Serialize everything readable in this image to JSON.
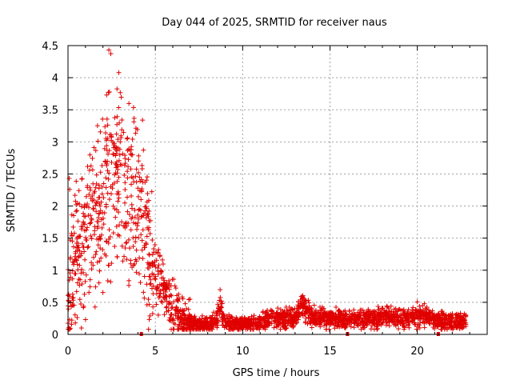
{
  "chart_data": {
    "type": "scatter",
    "title": "Day 044 of 2025, SRMTID for receiver naus",
    "xlabel": "GPS time / hours",
    "ylabel": "SRMTID / TECUs",
    "xlim": [
      0,
      24
    ],
    "ylim": [
      0,
      4.5
    ],
    "x_ticks": [
      0,
      5,
      10,
      15,
      20
    ],
    "y_ticks": [
      0,
      0.5,
      1,
      1.5,
      2,
      2.5,
      3,
      3.5,
      4,
      4.5
    ],
    "x_tick_labels": [
      "0",
      "5",
      "10",
      "15",
      "20"
    ],
    "y_tick_labels": [
      "0",
      "0.5",
      "1",
      "1.5",
      "2",
      "2.5",
      "3",
      "3.5",
      "4",
      "4.5"
    ],
    "grid": true,
    "marker": "+",
    "color": "#e00000",
    "gap_markers_x": [
      4.2,
      16.0,
      21.2
    ],
    "series": [
      {
        "name": "SRMTID",
        "trend_x": [
          0.0,
          0.25,
          0.5,
          0.75,
          1.0,
          1.25,
          1.5,
          1.75,
          2.0,
          2.25,
          2.5,
          2.75,
          3.0,
          3.25,
          3.5,
          3.75,
          4.0,
          4.25,
          4.5,
          4.75,
          5.0,
          5.25,
          5.5,
          5.75,
          6.0,
          6.25,
          6.5,
          6.75,
          7.0,
          7.5,
          8.0,
          8.5,
          8.7,
          9.0,
          9.5,
          10.0,
          10.5,
          11.0,
          11.5,
          12.0,
          12.5,
          13.0,
          13.5,
          14.0,
          14.5,
          15.0,
          15.5,
          16.0,
          16.5,
          17.0,
          17.5,
          18.0,
          18.5,
          19.0,
          19.5,
          20.0,
          20.5,
          21.0,
          21.5,
          22.0,
          22.5,
          22.8
        ],
        "trend_y": [
          0.5,
          0.9,
          1.1,
          1.3,
          1.5,
          1.9,
          1.9,
          1.8,
          2.1,
          2.5,
          2.6,
          2.4,
          2.4,
          2.2,
          2.1,
          2.2,
          1.9,
          1.6,
          1.5,
          1.2,
          1.0,
          0.9,
          0.7,
          0.5,
          0.4,
          0.35,
          0.25,
          0.2,
          0.17,
          0.15,
          0.14,
          0.22,
          0.45,
          0.2,
          0.17,
          0.16,
          0.17,
          0.2,
          0.22,
          0.25,
          0.25,
          0.28,
          0.45,
          0.25,
          0.28,
          0.25,
          0.24,
          0.22,
          0.25,
          0.24,
          0.25,
          0.3,
          0.28,
          0.27,
          0.25,
          0.3,
          0.27,
          0.22,
          0.2,
          0.2,
          0.2,
          0.22
        ]
      }
    ]
  }
}
